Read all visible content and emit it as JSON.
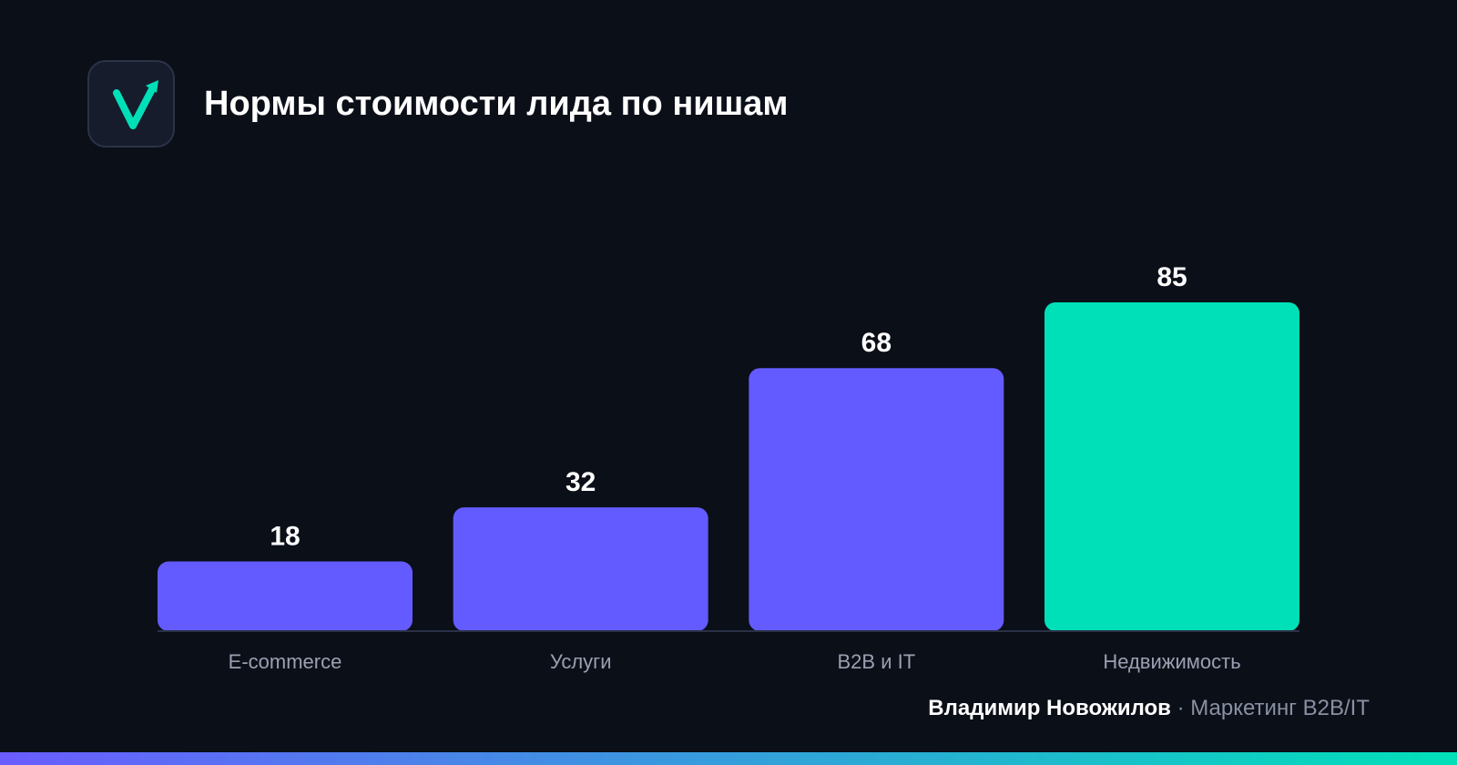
{
  "header": {
    "title": "Нормы стоимости лида по нишам",
    "logo_icon": "checkmark-arrow-logo-icon"
  },
  "chart_data": {
    "type": "bar",
    "title": "Нормы стоимости лида по нишам",
    "categories": [
      "E-commerce",
      "Услуги",
      "B2B и IT",
      "Недвижимость"
    ],
    "values": [
      18,
      32,
      68,
      85
    ],
    "data_labels": [
      "18",
      "32",
      "68",
      "85"
    ],
    "xlabel": "",
    "ylabel": "",
    "grid": false,
    "legend": "none",
    "colors": [
      "#635bff",
      "#635bff",
      "#635bff",
      "#00e0b8"
    ]
  },
  "footer": {
    "author": "Владимир Новожилов",
    "separator": "·",
    "role": "Маркетинг B2B/IT"
  },
  "colors": {
    "background": "#0b0f18",
    "bar_primary": "#635bff",
    "bar_accent": "#00e0b8",
    "gradient_start": "#6a5cff",
    "gradient_end": "#00e0b8"
  }
}
